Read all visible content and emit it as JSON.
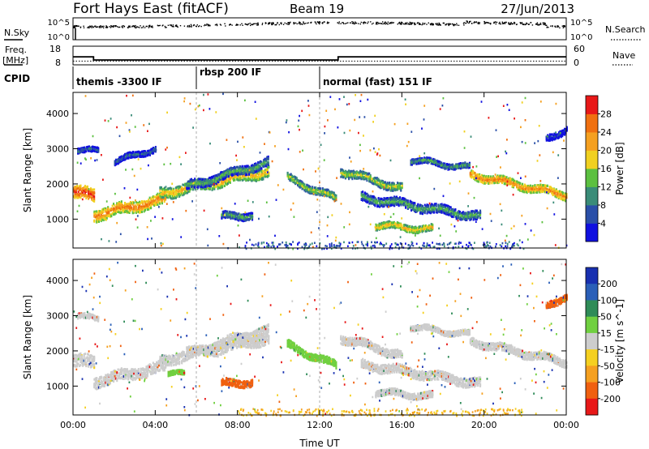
{
  "header": {
    "station": "Fort Hays East (fitACF)",
    "beam": "Beam 19",
    "date": "27/Jun/2013"
  },
  "summary_panels": {
    "nsky_label": "N.Sky",
    "nsearch_label": "N.Search",
    "noise_ticks": [
      "10^5",
      "10^0"
    ],
    "freq_label_line1": "Freq.",
    "freq_label_line2": "[MHz]",
    "freq_ticks": [
      "18",
      "8"
    ],
    "nave_label": "Nave",
    "nave_ticks": [
      "60",
      "0"
    ],
    "cpid_label": "CPID",
    "cpid_modes": [
      {
        "label": "themis -3300 IF",
        "start_hour": 0,
        "end_hour": 6.0
      },
      {
        "label": "rbsp 200 IF",
        "start_hour": 6.0,
        "end_hour": 12.0
      },
      {
        "label": "normal (fast) 151 IF",
        "start_hour": 12.0,
        "end_hour": 24
      }
    ],
    "freq_series_mhz": {
      "hours": [
        0,
        1.0,
        1.0,
        12.9,
        12.9,
        24
      ],
      "values": [
        12.3,
        12.3,
        10.6,
        10.6,
        12.3,
        12.3
      ]
    },
    "nave_series": {
      "hours": [
        0,
        24
      ],
      "values": [
        12,
        12
      ]
    }
  },
  "chart_data": [
    {
      "type": "heatmap",
      "title": "Power",
      "xlabel": "",
      "ylabel": "Slant Range [km]",
      "xlim": [
        0,
        24
      ],
      "ylim": [
        180,
        4600
      ],
      "x_ticks": [
        "00:00",
        "04:00",
        "08:00",
        "12:00",
        "16:00",
        "20:00",
        "00:00"
      ],
      "y_ticks": [
        1000,
        2000,
        3000,
        4000
      ],
      "colorbar": {
        "label": "Power [dB]",
        "ticks": [
          "4",
          "8",
          "12",
          "16",
          "20",
          "24",
          "28"
        ],
        "colors": [
          "#1010e0",
          "#2a4fa8",
          "#3a8c78",
          "#5cc040",
          "#f0d020",
          "#f5a020",
          "#f07010",
          "#e81818"
        ]
      },
      "bands": [
        {
          "x_start": 0.0,
          "x_end": 1.0,
          "y_center": [
            1800,
            1700
          ],
          "width": 350,
          "level": 7
        },
        {
          "x_start": 1.0,
          "x_end": 4.5,
          "y_center": [
            1150,
            1600
          ],
          "width": 320,
          "level": 6
        },
        {
          "x_start": 4.2,
          "x_end": 9.5,
          "y_center": [
            1750,
            2400
          ],
          "width": 300,
          "level": 5
        },
        {
          "x_start": 5.5,
          "x_end": 9.5,
          "y_center": [
            1950,
            2650
          ],
          "width": 250,
          "level": 3
        },
        {
          "x_start": 7.2,
          "x_end": 8.7,
          "y_center": [
            1100,
            1150
          ],
          "width": 200,
          "level": 3
        },
        {
          "x_start": 0.2,
          "x_end": 1.2,
          "y_center": [
            3000,
            2950
          ],
          "width": 140,
          "level": 2
        },
        {
          "x_start": 2.0,
          "x_end": 4.0,
          "y_center": [
            2650,
            3050
          ],
          "width": 160,
          "level": 2
        },
        {
          "x_start": 10.4,
          "x_end": 12.8,
          "y_center": [
            2200,
            1600
          ],
          "width": 200,
          "level": 4
        },
        {
          "x_start": 13.0,
          "x_end": 16.0,
          "y_center": [
            2400,
            1900
          ],
          "width": 230,
          "level": 4
        },
        {
          "x_start": 14.0,
          "x_end": 19.8,
          "y_center": [
            1650,
            1100
          ],
          "width": 250,
          "level": 3
        },
        {
          "x_start": 14.7,
          "x_end": 17.5,
          "y_center": [
            850,
            750
          ],
          "width": 180,
          "level": 5
        },
        {
          "x_start": 16.4,
          "x_end": 19.3,
          "y_center": [
            2700,
            2500
          ],
          "width": 150,
          "level": 3
        },
        {
          "x_start": 19.3,
          "x_end": 24.0,
          "y_center": [
            2300,
            1700
          ],
          "width": 220,
          "level": 6
        },
        {
          "x_start": 23.0,
          "x_end": 24.0,
          "y_center": [
            3300,
            3600
          ],
          "width": 180,
          "level": 1
        }
      ]
    },
    {
      "type": "heatmap",
      "title": "Velocity",
      "xlabel": "Time UT",
      "ylabel": "Slant Range [km]",
      "xlim": [
        0,
        24
      ],
      "ylim": [
        180,
        4600
      ],
      "x_ticks": [
        "00:00",
        "04:00",
        "08:00",
        "12:00",
        "16:00",
        "20:00",
        "00:00"
      ],
      "y_ticks": [
        1000,
        2000,
        3000,
        4000
      ],
      "colorbar": {
        "label": "Velocity [m s^-1]",
        "ticks": [
          "200",
          "100",
          "50",
          "15",
          "-15",
          "-50",
          "-100",
          "-200"
        ],
        "colors": [
          "#1830b0",
          "#2a5fb8",
          "#2f8c58",
          "#70d040",
          "#cdcdcd",
          "#f5d020",
          "#f5a020",
          "#f06010",
          "#e81818"
        ]
      },
      "bands": [
        {
          "x_start": 0.0,
          "x_end": 1.0,
          "y_center": [
            1750,
            1700
          ],
          "width": 350,
          "level": 4
        },
        {
          "x_start": 1.0,
          "x_end": 4.5,
          "y_center": [
            1150,
            1600
          ],
          "width": 320,
          "level": 4
        },
        {
          "x_start": 4.2,
          "x_end": 9.5,
          "y_center": [
            1750,
            2400
          ],
          "width": 300,
          "level": 4
        },
        {
          "x_start": 5.5,
          "x_end": 9.5,
          "y_center": [
            1950,
            2650
          ],
          "width": 250,
          "level": 4
        },
        {
          "x_start": 7.2,
          "x_end": 8.7,
          "y_center": [
            1100,
            1150
          ],
          "width": 200,
          "level": 7
        },
        {
          "x_start": 4.6,
          "x_end": 5.4,
          "y_center": [
            1350,
            1400
          ],
          "width": 120,
          "level": 3
        },
        {
          "x_start": 0.2,
          "x_end": 1.2,
          "y_center": [
            3000,
            2950
          ],
          "width": 140,
          "level": 4
        },
        {
          "x_start": 10.4,
          "x_end": 12.8,
          "y_center": [
            2200,
            1600
          ],
          "width": 200,
          "level": 3
        },
        {
          "x_start": 13.0,
          "x_end": 16.0,
          "y_center": [
            2400,
            1900
          ],
          "width": 230,
          "level": 4
        },
        {
          "x_start": 14.0,
          "x_end": 19.8,
          "y_center": [
            1650,
            1100
          ],
          "width": 250,
          "level": 4
        },
        {
          "x_start": 14.7,
          "x_end": 17.5,
          "y_center": [
            850,
            750
          ],
          "width": 180,
          "level": 4
        },
        {
          "x_start": 16.4,
          "x_end": 19.3,
          "y_center": [
            2700,
            2500
          ],
          "width": 150,
          "level": 4
        },
        {
          "x_start": 19.3,
          "x_end": 24.0,
          "y_center": [
            2300,
            1700
          ],
          "width": 220,
          "level": 4
        },
        {
          "x_start": 23.0,
          "x_end": 24.0,
          "y_center": [
            3300,
            3600
          ],
          "width": 180,
          "level": 7
        }
      ]
    }
  ]
}
